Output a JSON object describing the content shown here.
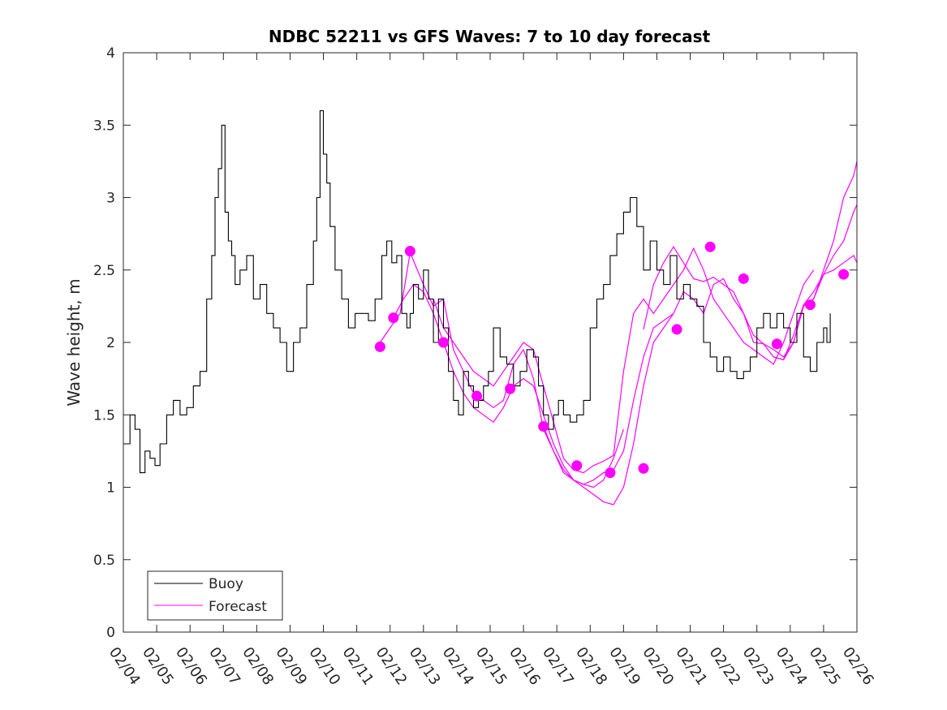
{
  "chart_data": {
    "type": "line",
    "title": "NDBC 52211 vs GFS Waves: 7 to 10 day forecast",
    "xlabel": "",
    "ylabel": "Wave height, m",
    "xlim": [
      0,
      22
    ],
    "ylim": [
      0,
      4
    ],
    "yticks": [
      0,
      0.5,
      1,
      1.5,
      2,
      2.5,
      3,
      3.5,
      4
    ],
    "ytick_labels": [
      "0",
      "0.5",
      "1",
      "1.5",
      "2",
      "2.5",
      "3",
      "3.5",
      "4"
    ],
    "xtick_labels": [
      "02/04",
      "02/05",
      "02/06",
      "02/07",
      "02/08",
      "02/09",
      "02/10",
      "02/11",
      "02/12",
      "02/13",
      "02/14",
      "02/15",
      "02/16",
      "02/17",
      "02/18",
      "02/19",
      "02/20",
      "02/21",
      "02/22",
      "02/23",
      "02/24",
      "02/25",
      "02/26"
    ],
    "legend": {
      "location": "bottom-left",
      "entries": [
        "Buoy",
        "Forecast"
      ]
    },
    "colors": {
      "buoy": "#000000",
      "forecast": "#ff00ff",
      "axis": "#262626"
    },
    "buoy": {
      "name": "Buoy",
      "x": [
        0,
        0.2,
        0.35,
        0.5,
        0.65,
        0.8,
        0.95,
        1.1,
        1.3,
        1.5,
        1.7,
        1.9,
        2.1,
        2.3,
        2.5,
        2.65,
        2.75,
        2.85,
        2.95,
        3.05,
        3.15,
        3.25,
        3.35,
        3.5,
        3.7,
        3.9,
        4.1,
        4.3,
        4.5,
        4.7,
        4.9,
        5.1,
        5.3,
        5.5,
        5.7,
        5.8,
        5.9,
        6.0,
        6.1,
        6.2,
        6.35,
        6.55,
        6.75,
        6.95,
        7.15,
        7.35,
        7.55,
        7.75,
        7.9,
        8.05,
        8.2,
        8.35,
        8.5,
        8.6,
        8.7,
        8.85,
        9.0,
        9.15,
        9.3,
        9.45,
        9.6,
        9.75,
        9.9,
        10.05,
        10.2,
        10.35,
        10.5,
        10.65,
        10.8,
        10.95,
        11.1,
        11.3,
        11.5,
        11.7,
        11.9,
        12.1,
        12.3,
        12.45,
        12.6,
        12.75,
        12.9,
        13.05,
        13.2,
        13.4,
        13.6,
        13.8,
        14.0,
        14.2,
        14.4,
        14.6,
        14.8,
        15.0,
        15.2,
        15.4,
        15.6,
        15.8,
        16.0,
        16.2,
        16.4,
        16.6,
        16.8,
        17.0,
        17.2,
        17.4,
        17.6,
        17.8,
        18.0,
        18.2,
        18.4,
        18.6,
        18.8,
        19.0,
        19.2,
        19.4,
        19.6,
        19.8,
        20.0,
        20.2,
        20.4,
        20.6,
        20.8,
        21.0,
        21.1,
        21.2
      ],
      "values": [
        1.3,
        1.5,
        1.4,
        1.1,
        1.25,
        1.2,
        1.15,
        1.3,
        1.5,
        1.6,
        1.5,
        1.55,
        1.7,
        1.8,
        2.3,
        2.6,
        3.0,
        3.2,
        3.5,
        2.9,
        2.7,
        2.6,
        2.4,
        2.5,
        2.6,
        2.3,
        2.4,
        2.2,
        2.1,
        2.0,
        1.8,
        2.0,
        2.1,
        2.4,
        2.7,
        3.0,
        3.6,
        3.3,
        3.1,
        2.8,
        2.5,
        2.3,
        2.1,
        2.2,
        2.2,
        2.15,
        2.3,
        2.6,
        2.7,
        2.55,
        2.6,
        2.2,
        2.1,
        2.2,
        2.4,
        2.3,
        2.5,
        2.3,
        2.0,
        2.3,
        2.1,
        1.8,
        1.6,
        1.5,
        1.8,
        1.7,
        1.55,
        1.6,
        1.7,
        1.8,
        2.1,
        1.9,
        1.85,
        1.7,
        1.8,
        1.95,
        1.9,
        1.7,
        1.5,
        1.4,
        1.5,
        1.6,
        1.5,
        1.45,
        1.5,
        1.6,
        2.1,
        2.3,
        2.4,
        2.6,
        2.75,
        2.9,
        3.0,
        2.8,
        2.5,
        2.7,
        2.5,
        2.4,
        2.6,
        2.3,
        2.4,
        2.3,
        2.25,
        2.0,
        1.9,
        1.8,
        1.9,
        1.8,
        1.75,
        1.8,
        1.9,
        2.1,
        2.2,
        2.1,
        2.2,
        2.1,
        2.0,
        2.2,
        1.9,
        1.8,
        2.0,
        2.1,
        2.0,
        2.2
      ]
    },
    "forecast_series": [
      {
        "name": "Forecast",
        "x": [
          7.7,
          8.0,
          8.3,
          8.6,
          9.0,
          9.3,
          9.6,
          9.9,
          10.2,
          10.5,
          10.8,
          11.1,
          11.4,
          11.7,
          12.0,
          12.3,
          12.6,
          12.9,
          13.2,
          13.5,
          13.8,
          14.1,
          14.4,
          14.7,
          15.0
        ],
        "values": [
          2.0,
          2.1,
          2.2,
          2.62,
          2.4,
          2.25,
          2.3,
          1.95,
          1.8,
          1.65,
          1.6,
          1.55,
          1.6,
          1.85,
          1.95,
          1.75,
          1.4,
          1.25,
          1.1,
          1.05,
          1.02,
          1.0,
          1.05,
          1.2,
          1.4
        ]
      },
      {
        "name": "Forecast",
        "x": [
          8.1,
          8.4,
          8.7,
          9.0,
          9.3,
          9.6,
          9.9,
          10.2,
          10.5,
          10.8,
          11.1,
          11.4,
          11.7,
          12.0,
          12.3,
          12.6,
          12.9,
          13.2,
          13.5,
          13.8,
          14.1,
          14.4,
          14.7,
          15.0,
          15.3,
          15.6,
          15.9,
          16.2,
          16.5
        ],
        "values": [
          2.17,
          2.3,
          2.4,
          2.35,
          2.2,
          2.0,
          1.8,
          1.65,
          1.55,
          1.5,
          1.45,
          1.55,
          1.7,
          1.75,
          1.7,
          1.5,
          1.3,
          1.15,
          1.05,
          1.0,
          0.95,
          0.9,
          0.88,
          1.0,
          1.3,
          1.7,
          2.0,
          2.1,
          2.2
        ]
      },
      {
        "name": "Forecast",
        "x": [
          9.3,
          9.6,
          9.9,
          10.2,
          10.5,
          10.8,
          11.1,
          11.4,
          11.7,
          12.0,
          12.3,
          12.6,
          12.9,
          13.2,
          13.5,
          13.8,
          14.1,
          14.4,
          14.7,
          15.0,
          15.3,
          15.6,
          15.9,
          16.2,
          16.5,
          16.8,
          17.1,
          17.4,
          17.7,
          18.0,
          18.3,
          18.6,
          18.9,
          19.2,
          19.5,
          19.8,
          20.1,
          20.4,
          20.7
        ],
        "values": [
          2.3,
          2.1,
          2.0,
          1.9,
          1.8,
          1.75,
          1.7,
          1.8,
          1.9,
          2.0,
          1.95,
          1.7,
          1.45,
          1.2,
          1.12,
          1.1,
          1.15,
          1.18,
          1.22,
          1.8,
          2.2,
          2.3,
          2.2,
          2.3,
          2.4,
          2.5,
          2.65,
          2.5,
          2.3,
          2.2,
          2.1,
          2.0,
          1.95,
          1.9,
          1.85,
          2.0,
          2.2,
          2.4,
          2.5
        ]
      },
      {
        "name": "Forecast",
        "x": [
          12.6,
          12.9,
          13.2,
          13.5,
          13.8,
          14.1,
          14.4,
          14.7,
          15.0,
          15.3,
          15.6,
          15.9,
          16.2,
          16.5,
          16.8,
          17.1,
          17.4,
          17.7,
          18.0,
          18.3,
          18.6,
          18.9,
          19.2,
          19.5,
          19.8,
          20.1,
          20.4,
          20.7,
          21.0,
          21.3,
          21.6,
          21.9,
          22.0
        ],
        "values": [
          1.42,
          1.25,
          1.12,
          1.05,
          1.02,
          1.05,
          1.1,
          1.12,
          1.25,
          1.6,
          1.9,
          2.1,
          2.15,
          2.2,
          2.35,
          2.3,
          2.2,
          2.4,
          2.44,
          2.3,
          2.2,
          2.05,
          1.99,
          1.95,
          1.9,
          2.0,
          2.25,
          2.3,
          2.5,
          2.7,
          3.0,
          3.15,
          3.25
        ]
      },
      {
        "name": "Forecast",
        "x": [
          15.6,
          15.9,
          16.2,
          16.5,
          16.8,
          17.1,
          17.4,
          17.7,
          18.0,
          18.3,
          18.6,
          18.9,
          19.2,
          19.5,
          19.8,
          20.1,
          20.4,
          20.7,
          21.0,
          21.3,
          21.6,
          21.9,
          22.0
        ],
        "values": [
          2.09,
          2.4,
          2.55,
          2.66,
          2.55,
          2.44,
          2.42,
          2.45,
          2.4,
          2.35,
          2.2,
          2.0,
          1.99,
          1.9,
          1.88,
          2.0,
          2.26,
          2.3,
          2.47,
          2.5,
          2.55,
          2.6,
          2.55
        ]
      },
      {
        "name": "Forecast",
        "x": [
          19.5,
          19.8,
          20.1,
          20.4,
          20.7,
          21.0,
          21.3,
          21.6,
          21.9,
          22.0
        ],
        "values": [
          1.9,
          1.88,
          2.05,
          2.26,
          2.35,
          2.47,
          2.6,
          2.7,
          2.9,
          2.95
        ]
      }
    ],
    "forecast_markers": {
      "name": "Forecast",
      "x": [
        7.7,
        8.1,
        8.6,
        9.6,
        10.6,
        11.6,
        12.6,
        13.6,
        14.6,
        15.6,
        16.6,
        17.6,
        18.6,
        19.6,
        20.6,
        21.6
      ],
      "values": [
        1.97,
        2.17,
        2.63,
        2.0,
        1.63,
        1.68,
        1.42,
        1.15,
        1.1,
        1.13,
        2.09,
        2.66,
        2.44,
        1.99,
        2.26,
        2.47
      ]
    }
  }
}
